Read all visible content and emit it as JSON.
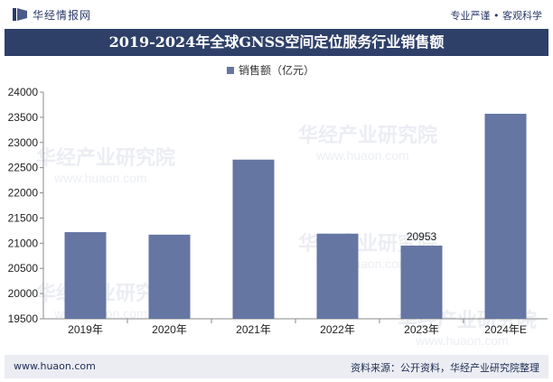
{
  "header": {
    "brand": "华经情报网",
    "tagline": "专业严谨 • 客观科学"
  },
  "footer": {
    "url": "www.huaon.com",
    "source": "资料来源：公开资料，华经产业研究院整理"
  },
  "watermark": {
    "text": "华经产业研究院",
    "url": "www.huaon.com"
  },
  "colors": {
    "bar": "#6676a3",
    "title_bg": "#2e4068",
    "footer_bg": "#ebedf3"
  },
  "chart_data": {
    "type": "bar",
    "title": "2019-2024年全球GNSS空间定位服务行业销售额",
    "legend": "销售额（亿元）",
    "categories": [
      "2019年",
      "2020年",
      "2021年",
      "2022年",
      "2023年",
      "2024年E"
    ],
    "series": [
      {
        "name": "销售额（亿元）",
        "values": [
          21220,
          21170,
          22660,
          21190,
          20953,
          23570
        ]
      }
    ],
    "data_labels": [
      null,
      null,
      null,
      null,
      "20953",
      null
    ],
    "ylim": [
      19500,
      24000
    ],
    "yticks": [
      19500,
      20000,
      20500,
      21000,
      21500,
      22000,
      22500,
      23000,
      23500,
      24000
    ],
    "xlabel": "",
    "ylabel": ""
  }
}
